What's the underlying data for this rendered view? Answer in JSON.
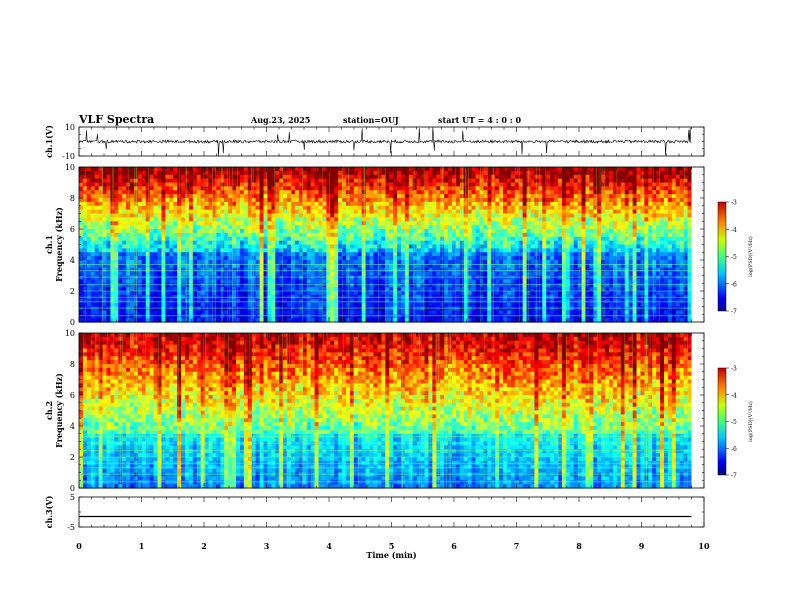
{
  "header": {
    "title": "VLF Spectra",
    "date": "Aug.23, 2025",
    "station": "station=OUJ",
    "start_ut": "start UT =  4 : 0  : 0"
  },
  "chart_data": [
    {
      "type": "line",
      "panel": "ch1-waveform",
      "ylabel": "ch.1(V)",
      "ylim": [
        -10,
        10
      ],
      "yticks": [
        "10",
        "-10"
      ],
      "x_range_min": [
        0,
        10
      ],
      "data_end_min": 9.8,
      "series": [
        {
          "values_summary": {
            "baseline": 0.0,
            "noise_amplitude": 1.0,
            "spike_amplitude": 10
          }
        }
      ]
    },
    {
      "type": "heatmap",
      "panel": "ch1-spectrogram",
      "ylabel": "ch.1\nFrequency (kHz)",
      "ylim": [
        0,
        10
      ],
      "yticks": [
        "0",
        "2",
        "4",
        "6",
        "8",
        "10"
      ],
      "x_range_min": [
        0,
        10
      ],
      "data_end_min": 9.8,
      "colorbar": {
        "label": "log(PSD)(V²/Hz)",
        "range": [
          -7,
          -3
        ],
        "ticks": [
          "-3",
          "-4",
          "-5",
          "-6",
          "-7"
        ],
        "colormap": "jet"
      },
      "description_values": {
        "low_band_khz": [
          0,
          4.5
        ],
        "low_band_log_psd": -6.5,
        "high_band_log_psd": -4.0
      }
    },
    {
      "type": "heatmap",
      "panel": "ch2-spectrogram",
      "ylabel": "ch.2\nFrequency (kHz)",
      "ylim": [
        0,
        10
      ],
      "yticks": [
        "0",
        "2",
        "4",
        "6",
        "8",
        "10"
      ],
      "x_range_min": [
        0,
        10
      ],
      "data_end_min": 9.8,
      "colorbar": {
        "label": "log(PSD)(V²/Hz)",
        "range": [
          -7,
          -3
        ],
        "ticks": [
          "-3",
          "-4",
          "-5",
          "-6",
          "-7"
        ],
        "colormap": "jet"
      },
      "description_values": {
        "low_band_khz": [
          0,
          3.5
        ],
        "low_band_log_psd": -6.0,
        "high_band_log_psd": -4.2
      }
    },
    {
      "type": "line",
      "panel": "ch3-waveform",
      "ylabel": "ch.3(V)",
      "ylim": [
        -5,
        5
      ],
      "yticks": [
        "5",
        "-5"
      ],
      "x_range_min": [
        0,
        10
      ],
      "data_end_min": 9.8,
      "series": [
        {
          "values_summary": {
            "constant": -1.5
          }
        }
      ]
    }
  ],
  "xaxis": {
    "label": "Time (min)",
    "ticks": [
      "0",
      "1",
      "2",
      "3",
      "4",
      "5",
      "6",
      "7",
      "8",
      "9",
      "10"
    ]
  }
}
